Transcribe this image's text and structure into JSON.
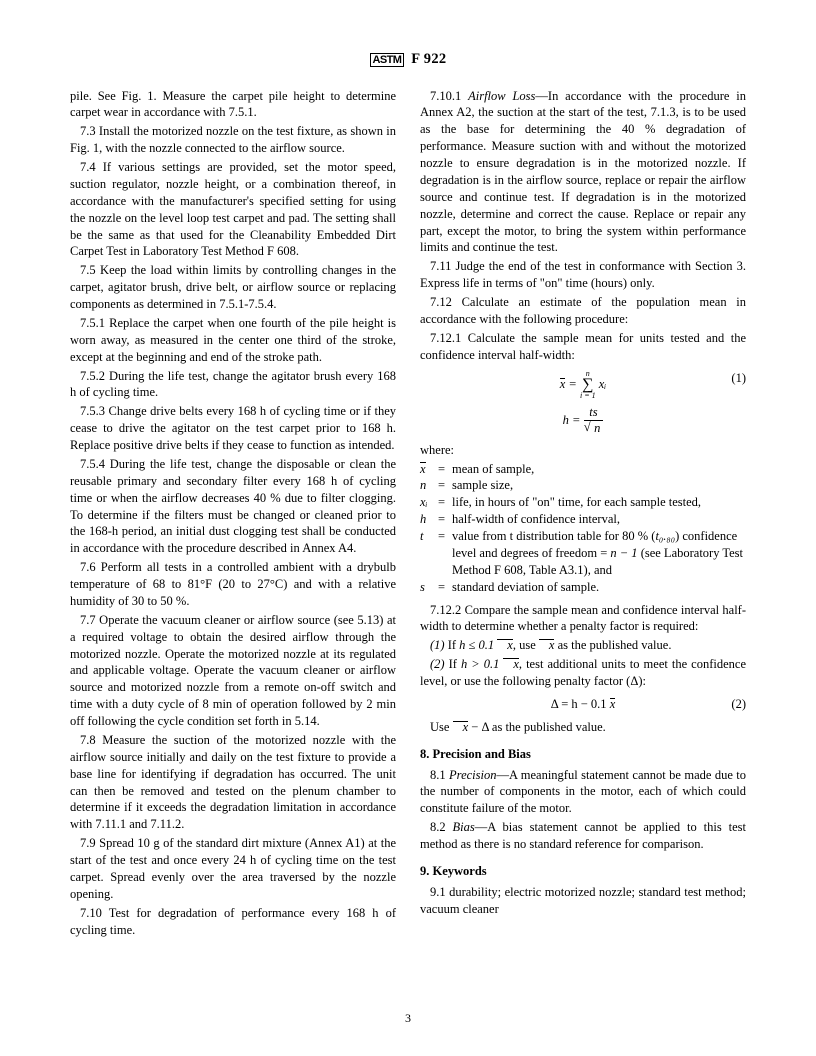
{
  "header": {
    "logo_text": "ASTM",
    "code": "F 922"
  },
  "col1": {
    "p1": "pile. See Fig. 1. Measure the carpet pile height to determine carpet wear in accordance with 7.5.1.",
    "p2": "7.3 Install the motorized nozzle on the test fixture, as shown in Fig. 1, with the nozzle connected to the airflow source.",
    "p3": "7.4 If various settings are provided, set the motor speed, suction regulator, nozzle height, or a combination thereof, in accordance with the manufacturer's specified setting for using the nozzle on the level loop test carpet and pad. The setting shall be the same as that used for the Cleanability Embedded Dirt Carpet Test in Laboratory Test Method F 608.",
    "p4": "7.5 Keep the load within limits by controlling changes in the carpet, agitator brush, drive belt, or airflow source or replacing components as determined in 7.5.1-7.5.4.",
    "p5": "7.5.1 Replace the carpet when one fourth of the pile height is worn away, as measured in the center one third of the stroke, except at the beginning and end of the stroke path.",
    "p6": "7.5.2 During the life test, change the agitator brush every 168 h of cycling time.",
    "p7": "7.5.3 Change drive belts every 168 h of cycling time or if they cease to drive the agitator on the test carpet prior to 168 h. Replace positive drive belts if they cease to function as intended.",
    "p8": "7.5.4 During the life test, change the disposable or clean the reusable primary and secondary filter every 168 h of cycling time or when the airflow decreases 40 % due to filter clogging. To determine if the filters must be changed or cleaned prior to the 168-h period, an initial dust clogging test shall be conducted in accordance with the procedure described in Annex A4.",
    "p9": "7.6 Perform all tests in a controlled ambient with a drybulb temperature of 68 to 81°F (20 to 27°C) and with a relative humidity of 30 to 50 %.",
    "p10": "7.7 Operate the vacuum cleaner or airflow source (see 5.13) at a required voltage to obtain the desired airflow through the motorized nozzle. Operate the motorized nozzle at its regulated and applicable voltage. Operate the vacuum cleaner or airflow source and motorized nozzle from a remote on-off switch and time with a duty cycle of 8 min of operation followed by 2 min off following the cycle condition set forth in 5.14.",
    "p11": "7.8 Measure the suction of the motorized nozzle with the airflow source initially and daily on the test fixture to provide a base line for identifying if degradation has occurred. The unit can then be removed and tested on the plenum chamber to determine if it exceeds the degradation limitation in accordance with 7.11.1 and 7.11.2.",
    "p12": "7.9 Spread 10 g of the standard dirt mixture (Annex A1) at the start of the test and once every 24 h of cycling time on the test carpet. Spread evenly over the area traversed by the nozzle opening.",
    "p13": "7.10 Test for degradation of performance every 168 h of cycling time."
  },
  "col2": {
    "p1a": "7.10.1 ",
    "p1i": "Airflow Loss",
    "p1b": "—In accordance with the procedure in Annex A2, the suction at the start of the test, 7.1.3, is to be used as the base for determining the 40 % degradation of performance. Measure suction with and without the motorized nozzle to ensure degradation is in the motorized nozzle. If degradation is in the airflow source, replace or repair the airflow source and continue test. If degradation is in the motorized nozzle, determine and correct the cause. Replace or repair any part, except the motor, to bring the system within performance limits and continue the test.",
    "p2": "7.11 Judge the end of the test in conformance with Section 3. Express life in terms of \"on\" time (hours) only.",
    "p3": "7.12 Calculate an estimate of the population mean in accordance with the following procedure:",
    "p4": "7.12.1 Calculate the sample mean for units tested and the confidence interval half-width:",
    "where_label": "where:",
    "where": {
      "xbar_sym": "x̄",
      "xbar_def": "mean of sample,",
      "n_sym": "n",
      "n_def": "sample size,",
      "xi_sym": "xᵢ",
      "xi_def": "life, in hours of \"on\" time, for each sample tested,",
      "h_sym": "h",
      "h_def": "half-width of confidence interval,",
      "t_sym": "t",
      "t_def1": "value from t distribution table for 80 % (",
      "t_def2": ") confidence level and degrees of freedom = ",
      "t_def3": " (see Laboratory Test Method F 608, Table A3.1), and",
      "s_sym": "s",
      "s_def": "standard deviation of sample."
    },
    "p5": "7.12.2 Compare the sample mean and confidence interval half-width to determine whether a penalty factor is required:",
    "p6a": "(1)",
    "p6b": " If ",
    "p6c": ", use ",
    "p6d": " as the published value.",
    "p7a": "(2)",
    "p7b": " If ",
    "p7c": ", test additional units to meet the confidence level, or use the following penalty factor (Δ):",
    "p8a": "Use ",
    "p8b": " as the published value.",
    "sec8_head": "8. Precision and Bias",
    "p9a": "8.1 ",
    "p9i": "Precision",
    "p9b": "—A meaningful statement cannot be made due to the number of components in the motor, each of which could constitute failure of the motor.",
    "p10a": "8.2 ",
    "p10i": "Bias",
    "p10b": "—A bias statement cannot be applied to this test method as there is no standard reference for comparison.",
    "sec9_head": "9. Keywords",
    "p11": "9.1 durability; electric motorized nozzle; standard test method; vacuum cleaner"
  },
  "eq": {
    "eq1_num": "(1)",
    "eq2_num": "(2)",
    "sum_top": "n",
    "sum_bot": "i = 1",
    "xi": " xᵢ",
    "h_eq_left": "h = ",
    "ts": "ts",
    "sqrt_n": "n",
    "delta_eq": "Δ = h − 0.1 ",
    "t080": "t₀.₈₀",
    "nminus1": "n − 1",
    "h_le": "h ≤ 0.1 ",
    "h_gt": "h > 0.1 ",
    "xbar_minus_delta": " − Δ"
  },
  "pagenum": "3"
}
